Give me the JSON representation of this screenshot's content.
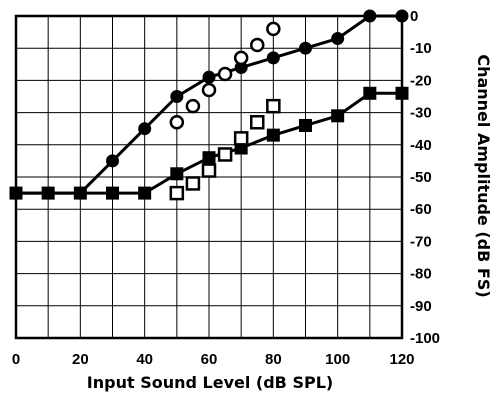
{
  "chart_data": {
    "type": "line",
    "xlabel": "Input Sound Level (dB SPL)",
    "ylabel": "Channel Amplitude (dB FS)",
    "xlim": [
      0,
      120
    ],
    "ylim": [
      -100,
      0
    ],
    "x_ticks": [
      "0",
      "20",
      "40",
      "60",
      "80",
      "100",
      "120"
    ],
    "y_ticks": [
      "0",
      "-10",
      "-20",
      "-30",
      "-40",
      "-50",
      "-60",
      "-70",
      "-80",
      "-90",
      "-100"
    ],
    "grid": true,
    "y_axis_side": "right",
    "series": [
      {
        "marker": "filled-circle",
        "line": true,
        "points": [
          [
            0,
            -55
          ],
          [
            10,
            -55
          ],
          [
            20,
            -55
          ],
          [
            30,
            -45
          ],
          [
            40,
            -35
          ],
          [
            50,
            -25
          ],
          [
            60,
            -19
          ],
          [
            70,
            -16
          ],
          [
            80,
            -13
          ],
          [
            90,
            -10
          ],
          [
            100,
            -7
          ],
          [
            110,
            0
          ],
          [
            120,
            0
          ]
        ]
      },
      {
        "marker": "open-circle",
        "line": false,
        "points": [
          [
            50,
            -33
          ],
          [
            55,
            -28
          ],
          [
            60,
            -23
          ],
          [
            65,
            -18
          ],
          [
            70,
            -13
          ],
          [
            75,
            -9
          ],
          [
            80,
            -4
          ]
        ]
      },
      {
        "marker": "filled-square",
        "line": true,
        "points": [
          [
            0,
            -55
          ],
          [
            10,
            -55
          ],
          [
            20,
            -55
          ],
          [
            30,
            -55
          ],
          [
            40,
            -55
          ],
          [
            50,
            -49
          ],
          [
            60,
            -44
          ],
          [
            70,
            -41
          ],
          [
            80,
            -37
          ],
          [
            90,
            -34
          ],
          [
            100,
            -31
          ],
          [
            110,
            -24
          ],
          [
            120,
            -24
          ]
        ]
      },
      {
        "marker": "open-square",
        "line": false,
        "points": [
          [
            50,
            -55
          ],
          [
            55,
            -52
          ],
          [
            60,
            -48
          ],
          [
            65,
            -43
          ],
          [
            70,
            -38
          ],
          [
            75,
            -33
          ],
          [
            80,
            -28
          ]
        ]
      }
    ]
  }
}
